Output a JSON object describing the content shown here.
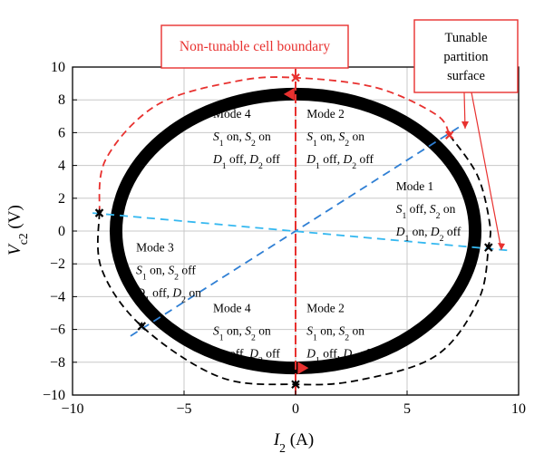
{
  "chart_data": {
    "type": "scatter",
    "xlabel": {
      "main": "I",
      "sub": "2",
      "unit": " (A)"
    },
    "ylabel": {
      "main": "V",
      "sub": "c2",
      "unit": " (V)"
    },
    "xlim": [
      -10,
      10
    ],
    "ylim": [
      -10,
      10
    ],
    "xticks": [
      -10,
      -5,
      0,
      5,
      10
    ],
    "yticks": [
      -10,
      -8,
      -6,
      -4,
      -2,
      0,
      2,
      4,
      6,
      8,
      10
    ],
    "xtick_labels": [
      "−10",
      "−5",
      "0",
      "5",
      "10"
    ],
    "ytick_labels": [
      "−10",
      "−8",
      "−6",
      "−4",
      "−2",
      "0",
      "2",
      "4",
      "6",
      "8",
      "10"
    ],
    "grid": true,
    "series": [
      {
        "kind": "thick-limit-cycle",
        "color": "#000000",
        "cx": 0,
        "cy": 0,
        "rx": 8.05,
        "ry": 8.35
      },
      {
        "kind": "dashed-orbit-red",
        "color": "#e8312f",
        "points": [
          [
            -8.8,
            1.1
          ],
          [
            -8.5,
            4.4
          ],
          [
            -6.2,
            7.7
          ],
          [
            -2.6,
            9.15
          ],
          [
            0,
            9.35
          ],
          [
            3.6,
            8.75
          ],
          [
            6.3,
            7.1
          ],
          [
            6.9,
            5.85
          ]
        ]
      },
      {
        "kind": "dashed-orbit-black",
        "color": "#000000",
        "points": [
          [
            6.9,
            5.85
          ],
          [
            8.15,
            3.4
          ],
          [
            8.7,
            0.5
          ],
          [
            8.65,
            -1.0
          ],
          [
            8.2,
            -4.2
          ],
          [
            6.3,
            -7.6
          ],
          [
            2.8,
            -9.1
          ],
          [
            0,
            -9.35
          ],
          [
            -3.4,
            -8.9
          ],
          [
            -6.9,
            -5.8
          ],
          [
            -8.7,
            -2.3
          ],
          [
            -8.8,
            1.1
          ]
        ]
      },
      {
        "kind": "partition-line",
        "color": "#2f7fd4",
        "points": [
          [
            -7.4,
            -6.4
          ],
          [
            7.4,
            6.4
          ]
        ]
      },
      {
        "kind": "partition-line",
        "color": "#35b8f0",
        "points": [
          [
            -9.1,
            1.1
          ],
          [
            9.7,
            -1.2
          ]
        ]
      },
      {
        "kind": "boundary-line",
        "color": "#e8312f",
        "points": [
          [
            0,
            -10
          ],
          [
            0,
            10
          ]
        ]
      }
    ],
    "markers": [
      {
        "x": 0,
        "y": 9.35,
        "color": "#e8312f"
      },
      {
        "x": 6.9,
        "y": 5.85,
        "color": "#e8312f"
      },
      {
        "x": -8.8,
        "y": 1.1,
        "color": "#000000"
      },
      {
        "x": 8.65,
        "y": -1.0,
        "color": "#000000"
      },
      {
        "x": 0,
        "y": -9.35,
        "color": "#000000"
      },
      {
        "x": -6.9,
        "y": -5.8,
        "color": "#000000"
      }
    ],
    "arrows": [
      {
        "x": -0.25,
        "y": 8.35,
        "dir": "left",
        "color": "#e8312f"
      },
      {
        "x": 0.3,
        "y": -8.35,
        "dir": "right",
        "color": "#e8312f"
      }
    ],
    "annotations": {
      "boundary_label": "Non-tunable cell boundary",
      "partition_label": "Tunable partition surface",
      "modes": [
        {
          "id": "m4-top",
          "x": -3.7,
          "y": 6.9,
          "title": "Mode 4",
          "line1": [
            [
              "S",
              "1"
            ],
            " on, ",
            [
              "S",
              "2"
            ],
            " on"
          ],
          "line2": [
            [
              "D",
              "1"
            ],
            " off, ",
            [
              "D",
              "2"
            ],
            " off"
          ]
        },
        {
          "id": "m2-top",
          "x": 0.5,
          "y": 6.9,
          "title": "Mode 2",
          "line1": [
            [
              "S",
              "1"
            ],
            " on, ",
            [
              "S",
              "2"
            ],
            " on"
          ],
          "line2": [
            [
              "D",
              "1"
            ],
            " off, ",
            [
              "D",
              "2"
            ],
            " off"
          ]
        },
        {
          "id": "m1",
          "x": 4.5,
          "y": 2.5,
          "title": "Mode 1",
          "line1": [
            [
              "S",
              "1"
            ],
            " off, ",
            [
              "S",
              "2"
            ],
            " on"
          ],
          "line2": [
            [
              "D",
              "1"
            ],
            " on, ",
            [
              "D",
              "2"
            ],
            " off"
          ]
        },
        {
          "id": "m3",
          "x": -7.15,
          "y": -1.25,
          "title": "Mode 3",
          "line1": [
            [
              "S",
              "1"
            ],
            " on, ",
            [
              "S",
              "2"
            ],
            " off"
          ],
          "line2": [
            [
              "D",
              "1"
            ],
            " off, ",
            [
              "D",
              "2"
            ],
            " on"
          ]
        },
        {
          "id": "m4-bot",
          "x": -3.7,
          "y": -4.95,
          "title": "Mode 4",
          "line1": [
            [
              "S",
              "1"
            ],
            " on, ",
            [
              "S",
              "2"
            ],
            " on"
          ],
          "line2": [
            [
              "D",
              "1"
            ],
            " off, ",
            [
              "D",
              "2"
            ],
            " off"
          ]
        },
        {
          "id": "m2-bot",
          "x": 0.5,
          "y": -4.95,
          "title": "Mode 2",
          "line1": [
            [
              "S",
              "1"
            ],
            " on, ",
            [
              "S",
              "2"
            ],
            " on"
          ],
          "line2": [
            [
              "D",
              "1"
            ],
            " off, ",
            [
              "D",
              "2"
            ],
            " off"
          ]
        }
      ]
    }
  }
}
